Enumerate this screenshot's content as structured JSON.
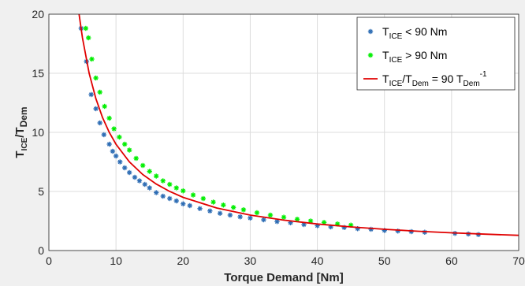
{
  "chart_data": {
    "type": "scatter",
    "title": "",
    "xlabel": "Torque Demand [Nm]",
    "ylabel": {
      "main": "T",
      "sub1": "ICE",
      "mid": "/T",
      "sub2": "Dem"
    },
    "xlim": [
      0,
      70
    ],
    "ylim": [
      0,
      20
    ],
    "x_ticks": [
      "0",
      "10",
      "20",
      "30",
      "40",
      "50",
      "60",
      "70"
    ],
    "y_ticks": [
      "0",
      "5",
      "10",
      "15",
      "20"
    ],
    "grid": true,
    "legend_position": "top-right",
    "legend": [
      {
        "marker": "*",
        "color": "#2e6db4",
        "parts": [
          "T",
          "ICE",
          " < 90 Nm"
        ]
      },
      {
        "marker": "*",
        "color": "#00ee00",
        "parts": [
          "T",
          "ICE",
          " > 90 Nm"
        ]
      },
      {
        "marker": "line",
        "color": "#e00000",
        "parts": [
          "T",
          "ICE",
          "/T",
          "Dem",
          " = 90 T",
          "Dem",
          "-1"
        ]
      }
    ],
    "series": [
      {
        "type": "scatter",
        "color": "#2e6db4",
        "x": [
          4.8,
          5.6,
          6.3,
          7.0,
          7.6,
          8.2,
          9.0,
          9.5,
          10.0,
          10.6,
          11.3,
          12.0,
          12.8,
          13.5,
          14.3,
          15.0,
          16.0,
          17.0,
          18.0,
          19.0,
          20.0,
          21.0,
          22.5,
          24.0,
          25.5,
          27.0,
          28.5,
          30.0,
          32.0,
          34.0,
          36.0,
          38.0,
          40.0,
          42.0,
          44.0,
          46.0,
          48.0,
          50.0,
          52.0,
          54.0,
          56.0,
          60.5,
          62.5,
          64.0
        ],
        "y": [
          18.8,
          16.0,
          13.2,
          12.0,
          10.8,
          9.8,
          9.0,
          8.4,
          8.0,
          7.5,
          7.0,
          6.6,
          6.2,
          5.9,
          5.6,
          5.3,
          4.9,
          4.6,
          4.4,
          4.2,
          3.95,
          3.8,
          3.55,
          3.35,
          3.15,
          3.0,
          2.85,
          2.75,
          2.6,
          2.45,
          2.35,
          2.2,
          2.1,
          2.0,
          1.95,
          1.85,
          1.8,
          1.7,
          1.65,
          1.6,
          1.55,
          1.45,
          1.4,
          1.35
        ]
      },
      {
        "type": "scatter",
        "color": "#00ee00",
        "x": [
          5.5,
          5.9,
          6.4,
          7.0,
          7.6,
          8.3,
          9.0,
          9.7,
          10.5,
          11.3,
          12.0,
          13.0,
          14.0,
          15.0,
          16.0,
          17.0,
          18.0,
          19.0,
          20.0,
          21.5,
          23.0,
          24.5,
          26.0,
          27.5,
          29.0,
          31.0,
          33.0,
          35.0,
          37.0,
          39.0,
          41.0,
          43.0,
          45.0
        ],
        "y": [
          18.8,
          18.0,
          16.2,
          14.6,
          13.4,
          12.2,
          11.2,
          10.3,
          9.6,
          9.0,
          8.5,
          7.8,
          7.2,
          6.7,
          6.3,
          5.9,
          5.6,
          5.3,
          5.05,
          4.7,
          4.4,
          4.1,
          3.85,
          3.65,
          3.45,
          3.2,
          3.0,
          2.82,
          2.65,
          2.5,
          2.38,
          2.25,
          2.15
        ]
      },
      {
        "type": "line",
        "color": "#e00000",
        "x": [
          4.5,
          5,
          6,
          7,
          8,
          9,
          10,
          12,
          14,
          16,
          18,
          20,
          25,
          30,
          35,
          40,
          45,
          50,
          55,
          60,
          65,
          70
        ],
        "y": [
          20.0,
          18.0,
          15.0,
          12.857,
          11.25,
          10.0,
          9.0,
          7.5,
          6.429,
          5.625,
          5.0,
          4.5,
          3.6,
          3.0,
          2.571,
          2.25,
          2.0,
          1.8,
          1.636,
          1.5,
          1.385,
          1.286
        ]
      }
    ]
  }
}
